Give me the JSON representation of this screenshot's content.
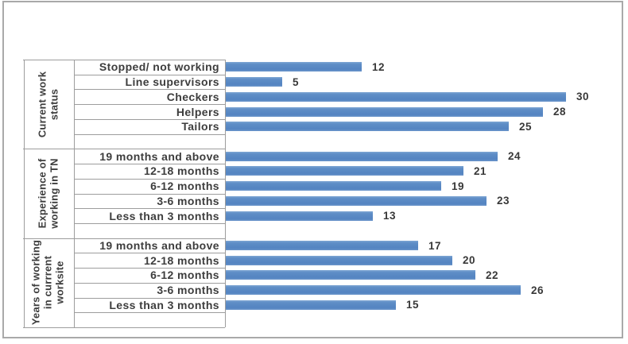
{
  "chart_data": {
    "type": "bar",
    "orientation": "horizontal",
    "title": "",
    "xlabel": "",
    "ylabel": "",
    "xlim": [
      0,
      35
    ],
    "grid": false,
    "legend": "none",
    "data_labels": true,
    "bar_color": "#5b8bc5",
    "axis_line_color": "#9d9d9d",
    "text_color": "#3d3d3d",
    "groups": [
      {
        "label": "Current work status",
        "categories": [
          "Stopped/ not working",
          "Line supervisors",
          "Checkers",
          "Helpers",
          "Tailors"
        ],
        "values": [
          12,
          5,
          30,
          28,
          25
        ]
      },
      {
        "label": "Experience of working in TN",
        "categories": [
          "19 months and above",
          "12-18 months",
          "6-12 months",
          "3-6 months",
          "Less than 3 months"
        ],
        "values": [
          24,
          21,
          19,
          23,
          13
        ]
      },
      {
        "label": "Years of working in currrent worksite",
        "categories": [
          "19 months and above",
          "12-18 months",
          "6-12 months",
          "3-6 months",
          "Less than 3 months"
        ],
        "values": [
          17,
          20,
          22,
          26,
          15
        ]
      }
    ]
  }
}
